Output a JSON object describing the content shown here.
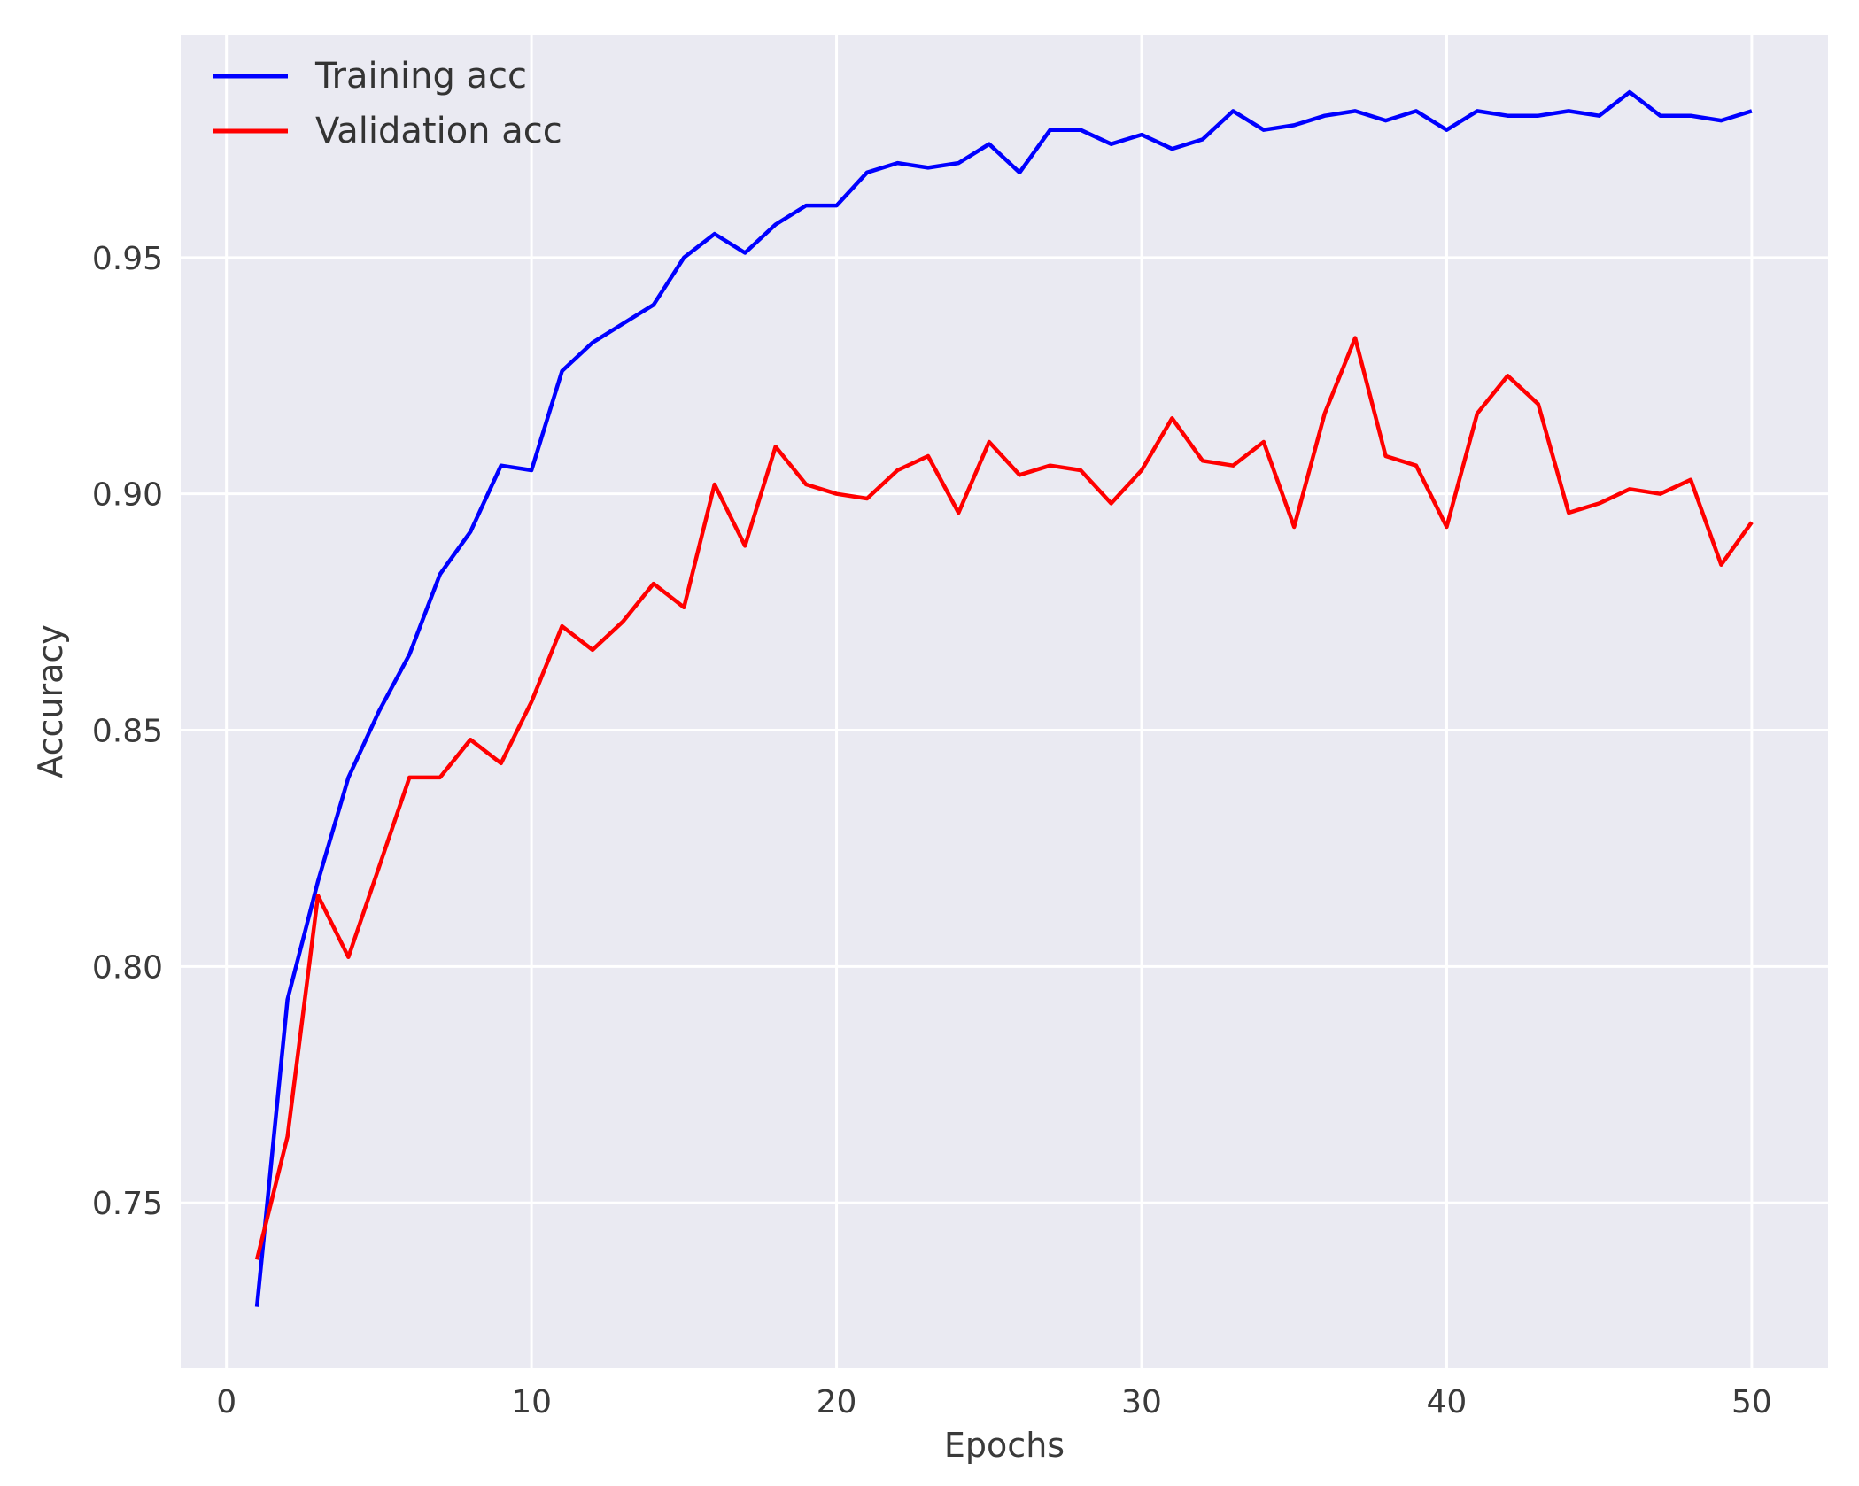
{
  "chart_data": {
    "type": "line",
    "title": "",
    "xlabel": "Epochs",
    "ylabel": "Accuracy",
    "xlim": [
      -1.5,
      52.5
    ],
    "ylim": [
      0.715,
      0.997
    ],
    "xticks": [
      0,
      10,
      20,
      30,
      40,
      50
    ],
    "xtick_labels": [
      "0",
      "10",
      "20",
      "30",
      "40",
      "50"
    ],
    "yticks": [
      0.75,
      0.8,
      0.85,
      0.9,
      0.95
    ],
    "ytick_labels": [
      "0.75",
      "0.80",
      "0.85",
      "0.90",
      "0.95"
    ],
    "grid": true,
    "legend_position": "top-left",
    "background_color": "#eaeaf2",
    "grid_color": "#ffffff",
    "x": [
      1,
      2,
      3,
      4,
      5,
      6,
      7,
      8,
      9,
      10,
      11,
      12,
      13,
      14,
      15,
      16,
      17,
      18,
      19,
      20,
      21,
      22,
      23,
      24,
      25,
      26,
      27,
      28,
      29,
      30,
      31,
      32,
      33,
      34,
      35,
      36,
      37,
      38,
      39,
      40,
      41,
      42,
      43,
      44,
      45,
      46,
      47,
      48,
      49,
      50
    ],
    "series": [
      {
        "name": "Training acc",
        "color": "#0000ff",
        "values": [
          0.728,
          0.793,
          0.818,
          0.84,
          0.854,
          0.866,
          0.883,
          0.892,
          0.906,
          0.905,
          0.926,
          0.932,
          0.936,
          0.94,
          0.95,
          0.955,
          0.951,
          0.957,
          0.961,
          0.961,
          0.968,
          0.97,
          0.969,
          0.97,
          0.974,
          0.968,
          0.977,
          0.977,
          0.974,
          0.976,
          0.973,
          0.975,
          0.981,
          0.977,
          0.978,
          0.98,
          0.981,
          0.979,
          0.981,
          0.977,
          0.981,
          0.98,
          0.98,
          0.981,
          0.98,
          0.985,
          0.98,
          0.98,
          0.979,
          0.981
        ]
      },
      {
        "name": "Validation acc",
        "color": "#ff0000",
        "values": [
          0.738,
          0.764,
          0.815,
          0.802,
          0.821,
          0.84,
          0.84,
          0.848,
          0.843,
          0.856,
          0.872,
          0.867,
          0.873,
          0.881,
          0.876,
          0.902,
          0.889,
          0.91,
          0.902,
          0.9,
          0.899,
          0.905,
          0.908,
          0.896,
          0.911,
          0.904,
          0.906,
          0.905,
          0.898,
          0.905,
          0.916,
          0.907,
          0.906,
          0.911,
          0.893,
          0.917,
          0.933,
          0.908,
          0.906,
          0.893,
          0.917,
          0.925,
          0.919,
          0.896,
          0.898,
          0.901,
          0.9,
          0.903,
          0.885,
          0.894
        ]
      }
    ]
  }
}
